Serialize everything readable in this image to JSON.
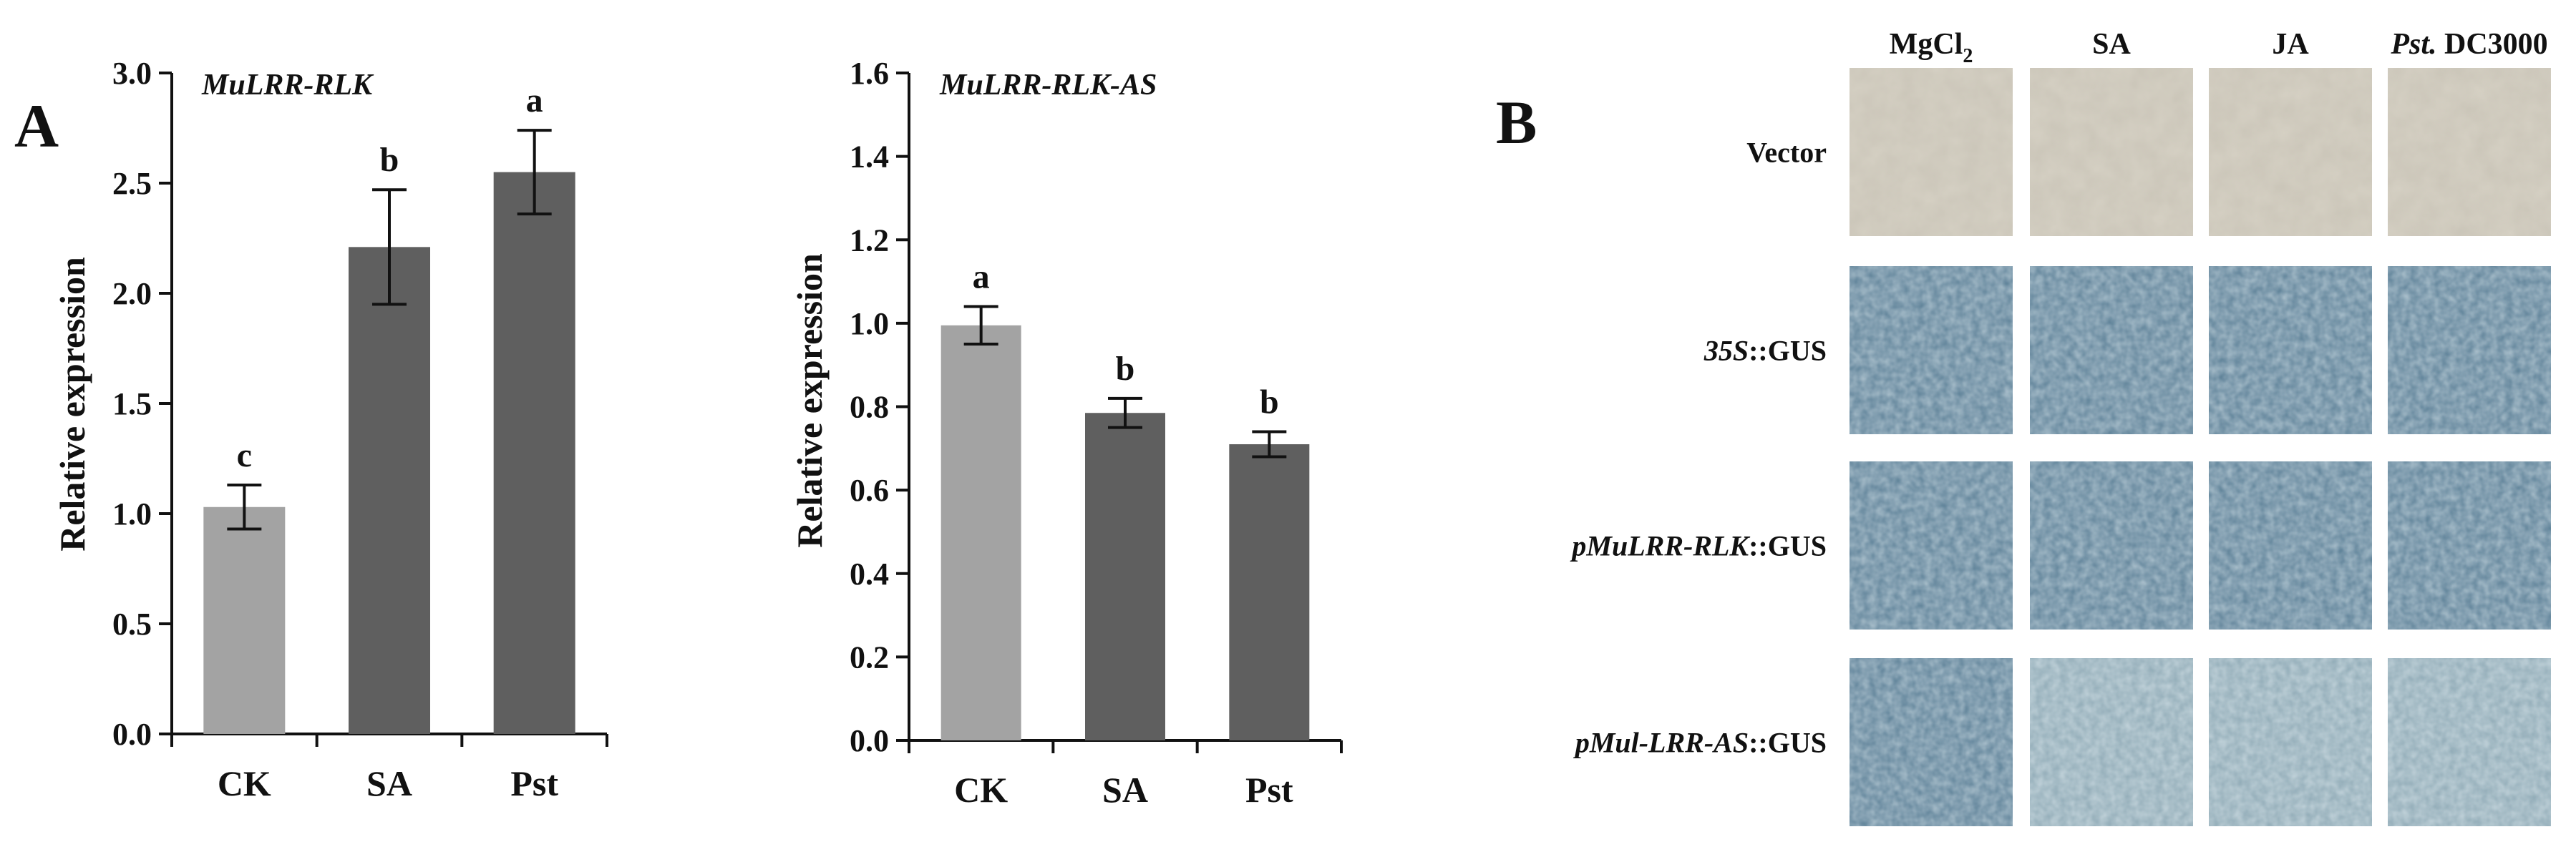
{
  "panel_a_letter": "A",
  "panel_b_letter": "B",
  "colors": {
    "ck_bar": "#a3a3a3",
    "treatment_bar": "#5f5f5f",
    "vector_tile": "#d6d1c4",
    "gus_tile": "#5b7f96",
    "gus_tile_light": "#8ea9b5"
  },
  "chart_data": [
    {
      "type": "bar",
      "title": "MuLRR-RLK",
      "xlabel": "",
      "ylabel": "Relative expression",
      "categories": [
        "CK",
        "SA",
        "Pst"
      ],
      "values": [
        1.03,
        2.21,
        2.55
      ],
      "errors": [
        0.1,
        0.26,
        0.19
      ],
      "significance": [
        "c",
        "b",
        "a"
      ],
      "ylim": [
        0.0,
        3.0
      ],
      "yticks": [
        "0.0",
        "0.5",
        "1.0",
        "1.5",
        "2.0",
        "2.5",
        "3.0"
      ],
      "grid": false
    },
    {
      "type": "bar",
      "title": "MuLRR-RLK-AS",
      "xlabel": "",
      "ylabel": "Relative expression",
      "categories": [
        "CK",
        "SA",
        "Pst"
      ],
      "values": [
        0.995,
        0.785,
        0.71
      ],
      "errors": [
        0.045,
        0.035,
        0.03
      ],
      "significance": [
        "a",
        "b",
        "b"
      ],
      "ylim": [
        0.0,
        1.6
      ],
      "yticks": [
        "0.0",
        "0.2",
        "0.4",
        "0.6",
        "0.8",
        "1.0",
        "1.2",
        "1.4",
        "1.6"
      ],
      "grid": false
    }
  ],
  "panel_b": {
    "columns": [
      {
        "main": "MgCl",
        "sub": "2",
        "prefix_italic": ""
      },
      {
        "main": "SA",
        "sub": "",
        "prefix_italic": ""
      },
      {
        "main": "JA",
        "sub": "",
        "prefix_italic": ""
      },
      {
        "main": " DC3000",
        "sub": "",
        "prefix_italic": "Pst."
      }
    ],
    "rows": [
      {
        "italic": "",
        "rest": "Vector",
        "stain": "none"
      },
      {
        "italic": "35S",
        "rest": "::GUS",
        "stain": "blue"
      },
      {
        "italic": "pMuLRR-RLK",
        "rest": "::GUS",
        "stain": "blue"
      },
      {
        "italic": "pMul-LRR-AS",
        "rest": "::GUS",
        "stain": "blue-light"
      }
    ]
  }
}
